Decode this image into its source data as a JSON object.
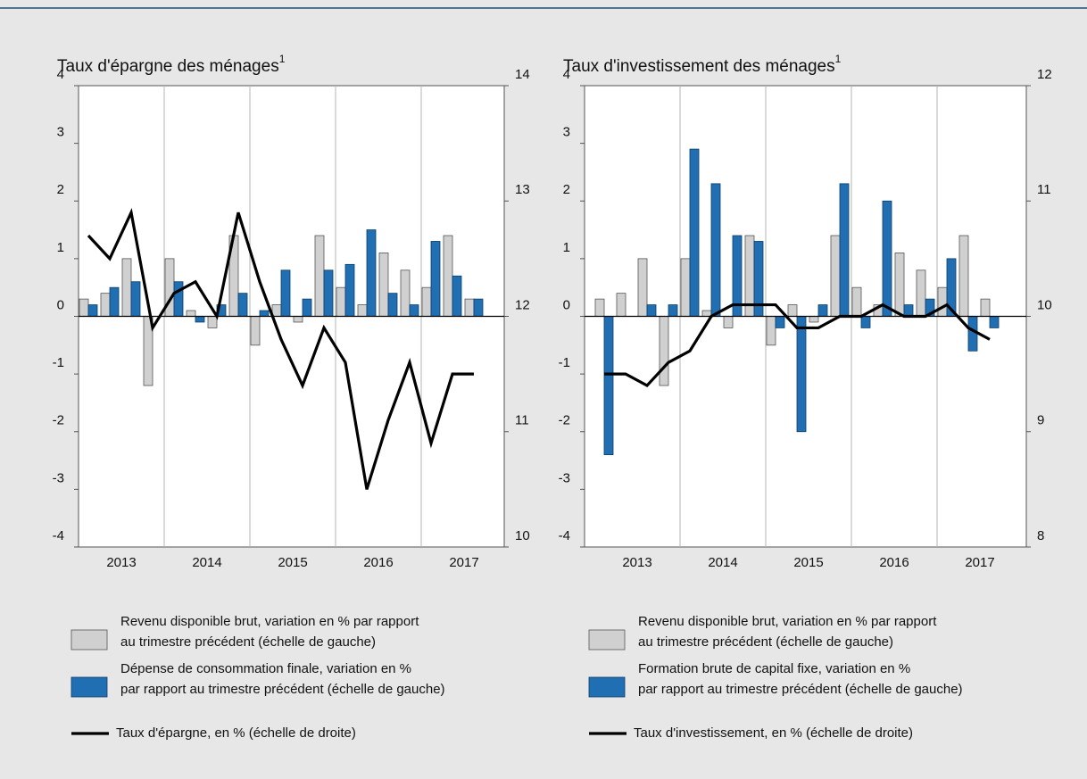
{
  "chart_data": [
    {
      "type": "bar_line",
      "title": "Taux d'épargne des ménages",
      "title_note": "1",
      "categories": [
        null,
        null,
        null,
        null,
        null,
        null,
        null,
        null,
        null,
        null,
        null,
        null,
        null,
        null,
        null,
        null,
        null,
        null,
        null
      ],
      "year_labels": [
        "2013",
        "2014",
        "2015",
        "2016",
        "2017"
      ],
      "series": [
        {
          "name": [
            "Revenu disponible brut, variation en % par rapport",
            "au trimestre précédent (échelle de gauche)"
          ],
          "color": "#d0d0d0",
          "values": [
            0.3,
            0.4,
            1.0,
            -1.2,
            1.0,
            0.1,
            -0.2,
            1.4,
            -0.5,
            0.2,
            -0.1,
            1.4,
            0.5,
            0.2,
            1.1,
            0.8,
            0.5,
            1.4,
            0.3
          ]
        },
        {
          "name": [
            "Dépense de consommation finale, variation en %",
            "par rapport au trimestre précédent (échelle de gauche)"
          ],
          "color": "#1f6fb2",
          "values": [
            0.2,
            0.5,
            0.6,
            0,
            0.6,
            -0.1,
            0.2,
            0.4,
            0.1,
            0.8,
            0.3,
            0.8,
            0.9,
            1.5,
            0.4,
            0.2,
            1.3,
            0.7,
            0.3
          ]
        },
        {
          "name": [
            "Taux d'épargne, en % (échelle de droite)"
          ],
          "color": "#000000",
          "type": "line",
          "axis": "y2",
          "values": [
            12.7,
            12.5,
            12.9,
            11.9,
            12.2,
            12.3,
            12.0,
            12.9,
            12.3,
            11.8,
            11.4,
            11.9,
            11.6,
            10.5,
            11.1,
            11.6,
            10.9,
            11.5,
            11.5
          ]
        }
      ],
      "ylim": [
        -4,
        4
      ],
      "yticks": [
        -4,
        -3,
        -2,
        -1,
        0,
        1,
        2,
        3,
        4
      ],
      "y2lim": [
        10,
        14
      ],
      "y2ticks": [
        10,
        11,
        12,
        13,
        14
      ]
    },
    {
      "type": "bar_line",
      "title": "Taux d'investissement des ménages",
      "title_note": "1",
      "categories": [
        null,
        null,
        null,
        null,
        null,
        null,
        null,
        null,
        null,
        null,
        null,
        null,
        null,
        null,
        null,
        null,
        null,
        null,
        null
      ],
      "year_labels": [
        "2013",
        "2014",
        "2015",
        "2016",
        "2017"
      ],
      "series": [
        {
          "name": [
            "Revenu disponible brut, variation en % par rapport",
            "au trimestre précédent (échelle de gauche)"
          ],
          "color": "#d0d0d0",
          "values": [
            0.3,
            0.4,
            1.0,
            -1.2,
            1.0,
            0.1,
            -0.2,
            1.4,
            -0.5,
            0.2,
            -0.1,
            1.4,
            0.5,
            0.2,
            1.1,
            0.8,
            0.5,
            1.4,
            0.3
          ]
        },
        {
          "name": [
            "Formation brute de capital fixe, variation en %",
            "par rapport au trimestre précédent (échelle de gauche)"
          ],
          "color": "#1f6fb2",
          "values": [
            -2.4,
            0,
            0.2,
            0.2,
            2.9,
            2.3,
            1.4,
            1.3,
            -0.2,
            -2.0,
            0.2,
            2.3,
            -0.2,
            2.0,
            0.2,
            0.3,
            1.0,
            -0.6,
            -0.2
          ]
        },
        {
          "name": [
            "Taux d'investissement, en % (échelle de droite)"
          ],
          "color": "#000000",
          "type": "line",
          "axis": "y2",
          "values": [
            9.5,
            9.5,
            9.4,
            9.6,
            9.7,
            10.0,
            10.1,
            10.1,
            10.1,
            9.9,
            9.9,
            10.0,
            10.0,
            10.1,
            10.0,
            10.0,
            10.1,
            9.9,
            9.8
          ]
        }
      ],
      "ylim": [
        -4,
        4
      ],
      "yticks": [
        -4,
        -3,
        -2,
        -1,
        0,
        1,
        2,
        3,
        4
      ],
      "y2lim": [
        8,
        12
      ],
      "y2ticks": [
        8,
        9,
        10,
        11,
        12
      ]
    }
  ]
}
